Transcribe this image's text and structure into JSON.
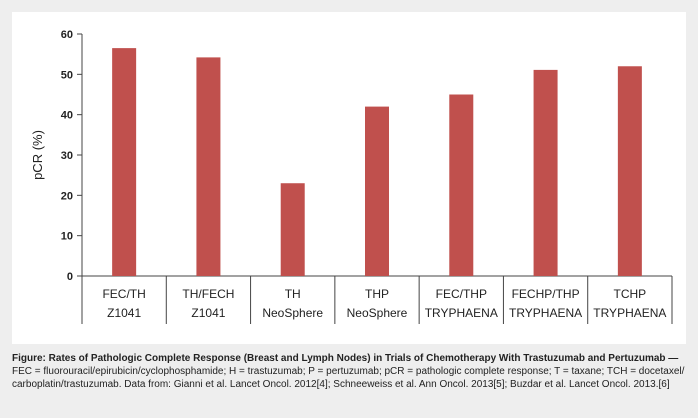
{
  "chart_data": {
    "type": "bar",
    "ylabel": "pCR (%)",
    "ylim": [
      0,
      60
    ],
    "yticks": [
      0,
      10,
      20,
      30,
      40,
      50,
      60
    ],
    "grid": false,
    "bar_color": "#c0504d",
    "categories": [
      [
        "FEC/TH",
        "Z1041"
      ],
      [
        "TH/FECH",
        "Z1041"
      ],
      [
        "TH",
        "NeoSphere"
      ],
      [
        "THP",
        "NeoSphere"
      ],
      [
        "FEC/THP",
        "TRYPHAENA"
      ],
      [
        "FECHP/THP",
        "TRYPHAENA"
      ],
      [
        "TCHP",
        "TRYPHAENA"
      ]
    ],
    "values": [
      56.5,
      54.2,
      23.0,
      42.0,
      45.0,
      51.1,
      52.0
    ]
  },
  "caption": {
    "title": "Figure: Rates of Pathologic Complete Response (Breast and Lymph Nodes) in Trials of Chemotherapy With Trastuzumab and Pertuzumab —",
    "body": "FEC = fluorouracil/epirubicin/cyclophosphamide; H = trastuzumab; P = pertuzumab; pCR = pathologic complete response; T = taxane; TCH = docetaxel/ carboplatin/trastuzumab. Data from: Gianni et al. Lancet Oncol. 2012[4]; Schneeweiss et al. Ann Oncol. 2013[5]; Buzdar et al. Lancet Oncol. 2013.[6]"
  }
}
